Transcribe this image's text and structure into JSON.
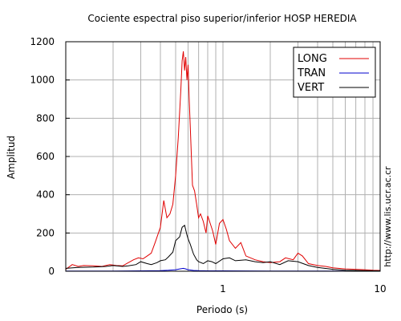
{
  "chart_data": {
    "type": "line",
    "title": "Cociente espectral piso superior/inferior  HOSP HEREDIA",
    "xlabel": "Periodo (s)",
    "ylabel": "Amplitud",
    "x_scale": "log",
    "xlim": [
      0.1,
      10
    ],
    "ylim": [
      0,
      1200
    ],
    "yticks": [
      0,
      200,
      400,
      600,
      800,
      1000,
      1200
    ],
    "ytick_labels": [
      "0",
      "200",
      "400",
      "600",
      "800",
      "1000",
      "1200"
    ],
    "xticks": [
      1,
      10
    ],
    "xtick_labels": [
      "1",
      "10"
    ],
    "grid": true,
    "legend_position": "top-right",
    "side_note": "http://www.lis.ucr.ac.cr",
    "series": [
      {
        "name": "LONG",
        "color": "#e00000",
        "x": [
          0.1,
          0.11,
          0.12,
          0.13,
          0.15,
          0.17,
          0.19,
          0.21,
          0.23,
          0.25,
          0.27,
          0.29,
          0.31,
          0.33,
          0.35,
          0.37,
          0.4,
          0.42,
          0.44,
          0.46,
          0.48,
          0.5,
          0.52,
          0.54,
          0.55,
          0.56,
          0.57,
          0.58,
          0.59,
          0.6,
          0.61,
          0.62,
          0.64,
          0.66,
          0.68,
          0.7,
          0.72,
          0.75,
          0.78,
          0.8,
          0.83,
          0.86,
          0.9,
          0.95,
          1.0,
          1.05,
          1.1,
          1.2,
          1.3,
          1.4,
          1.6,
          1.8,
          2.0,
          2.3,
          2.5,
          2.8,
          3.0,
          3.2,
          3.5,
          4.0,
          4.5,
          5.0,
          6.0,
          7.0,
          8.0,
          9.0,
          10.0
        ],
        "y": [
          10,
          35,
          25,
          30,
          28,
          25,
          35,
          30,
          28,
          45,
          60,
          70,
          65,
          80,
          95,
          150,
          230,
          370,
          280,
          300,
          350,
          500,
          700,
          950,
          1100,
          1150,
          1050,
          1120,
          1000,
          1080,
          900,
          750,
          450,
          420,
          350,
          280,
          300,
          260,
          200,
          290,
          250,
          210,
          140,
          250,
          270,
          220,
          160,
          120,
          150,
          80,
          60,
          50,
          45,
          50,
          70,
          60,
          95,
          80,
          40,
          30,
          25,
          18,
          12,
          10,
          8,
          5,
          4
        ]
      },
      {
        "name": "TRAN",
        "color": "#0000cc",
        "x": [
          0.1,
          0.2,
          0.3,
          0.4,
          0.45,
          0.5,
          0.53,
          0.56,
          0.58,
          0.6,
          0.65,
          0.7,
          0.8,
          1.0,
          2.0,
          5.0,
          10.0
        ],
        "y": [
          1,
          1,
          2,
          3,
          5,
          8,
          12,
          15,
          12,
          8,
          4,
          3,
          2,
          2,
          1,
          1,
          0
        ]
      },
      {
        "name": "VERT",
        "color": "#000000",
        "x": [
          0.1,
          0.12,
          0.15,
          0.18,
          0.2,
          0.23,
          0.25,
          0.28,
          0.3,
          0.33,
          0.35,
          0.38,
          0.4,
          0.43,
          0.45,
          0.48,
          0.5,
          0.53,
          0.55,
          0.57,
          0.59,
          0.6,
          0.62,
          0.65,
          0.68,
          0.7,
          0.75,
          0.8,
          0.85,
          0.9,
          1.0,
          1.1,
          1.2,
          1.4,
          1.6,
          1.8,
          2.0,
          2.3,
          2.6,
          3.0,
          3.5,
          4.0,
          5.0,
          6.0,
          8.0,
          10.0
        ],
        "y": [
          15,
          20,
          22,
          25,
          30,
          25,
          28,
          35,
          50,
          40,
          35,
          45,
          55,
          60,
          75,
          100,
          160,
          180,
          230,
          240,
          190,
          170,
          140,
          90,
          60,
          50,
          40,
          55,
          50,
          40,
          65,
          70,
          55,
          60,
          50,
          45,
          50,
          35,
          55,
          50,
          30,
          20,
          10,
          5,
          3,
          2
        ]
      }
    ]
  }
}
